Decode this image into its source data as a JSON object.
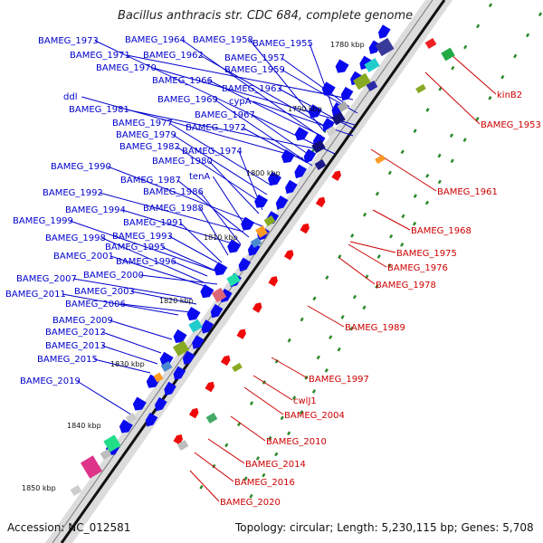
{
  "title": "Bacillus anthracis str. CDC 684, complete genome",
  "accession": "Accession: NC_012581",
  "footer": "Topology: circular; Length: 5,230,115 bp; Genes: 5,708",
  "colors": {
    "left_label": "#0000cc",
    "right_label": "#cc0000",
    "forward_gene": "#0a0aee",
    "reverse_gene": "#ee0a0a",
    "backbone": "#777777",
    "tick": "#2a8a2a"
  },
  "kbp_ticks": [
    "1780 kbp",
    "1790 kbp",
    "1800 kbp",
    "1810 kbp",
    "1820 kbp",
    "1830 kbp",
    "1840 kbp",
    "1850 kbp"
  ],
  "left_labels": [
    "BAMEG_1973",
    "BAMEG_1964",
    "BAMEG_1958",
    "BAMEG_1955",
    "BAMEG_1971",
    "BAMEG_1962",
    "BAMEG_1957",
    "BAMEG_1970",
    "BAMEG_1959",
    "BAMEG_1966",
    "BAMEG_1963",
    "ddl",
    "BAMEG_1969",
    "cypA",
    "BAMEG_1981",
    "BAMEG_1967",
    "BAMEG_1977",
    "BAMEG_1972",
    "BAMEG_1979",
    "BAMEG_1982",
    "BAMEG_1974",
    "BAMEG_1980",
    "BAMEG_1990",
    "tenA",
    "BAMEG_1987",
    "BAMEG_1992",
    "BAMEG_1986",
    "BAMEG_1994",
    "BAMEG_1988",
    "BAMEG_1999",
    "BAMEG_1991",
    "BAMEG_1993",
    "BAMEG_1998",
    "BAMEG_1995",
    "BAMEG_2001",
    "BAMEG_1996",
    "BAMEG_2007",
    "BAMEG_2000",
    "BAMEG_2011",
    "BAMEG_2003",
    "BAMEG_2006",
    "BAMEG_2009",
    "BAMEG_2012",
    "BAMEG_2013",
    "BAMEG_2015",
    "BAMEG_2019"
  ],
  "right_labels": [
    "kinB2",
    "BAMEG_1953",
    "BAMEG_1961",
    "BAMEG_1968",
    "BAMEG_1975",
    "BAMEG_1976",
    "BAMEG_1978",
    "BAMEG_1989",
    "BAMEG_1997",
    "cwlJ1",
    "BAMEG_2004",
    "BAMEG_2010",
    "BAMEG_2014",
    "BAMEG_2016",
    "BAMEG_2020"
  ]
}
